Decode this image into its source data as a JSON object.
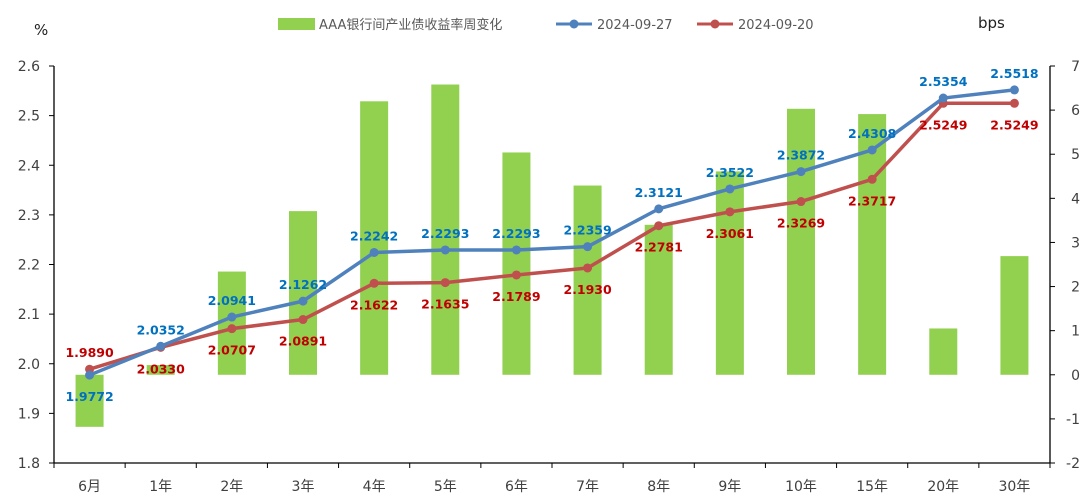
{
  "chart_data": {
    "type": "bar+line",
    "left_axis_unit": "%",
    "right_axis_unit": "bps",
    "left_ylim": [
      1.8,
      2.6
    ],
    "left_ticks": [
      "1.8",
      "1.9",
      "2.0",
      "2.1",
      "2.2",
      "2.3",
      "2.4",
      "2.5",
      "2.6"
    ],
    "right_ylim": [
      -2,
      7
    ],
    "right_ticks": [
      "-2",
      "-1",
      "0",
      "1",
      "2",
      "3",
      "4",
      "5",
      "6",
      "7"
    ],
    "categories": [
      "6月",
      "1年",
      "2年",
      "3年",
      "4年",
      "5年",
      "6年",
      "7年",
      "8年",
      "9年",
      "10年",
      "15年",
      "20年",
      "30年"
    ],
    "legend_position": "top",
    "grid": false,
    "series": [
      {
        "name": "AAA银行间产业债收益率周变化",
        "type": "bar",
        "axis": "right",
        "color": "#92d050",
        "values": [
          -1.18,
          0.22,
          2.34,
          3.71,
          6.2,
          6.58,
          5.04,
          4.29,
          3.4,
          4.61,
          6.03,
          5.91,
          1.05,
          2.69
        ]
      },
      {
        "name": "2024-09-27",
        "type": "line",
        "axis": "left",
        "color": "#4f81bd",
        "label_color": "#0070c0",
        "values": [
          1.9772,
          2.0352,
          2.0941,
          2.1262,
          2.2242,
          2.2293,
          2.2293,
          2.2359,
          2.3121,
          2.3522,
          2.3872,
          2.4308,
          2.5354,
          2.5518
        ],
        "labels": [
          "1.9772",
          "2.0352",
          "2.0941",
          "2.1262",
          "2.2242",
          "2.2293",
          "2.2293",
          "2.2359",
          "2.3121",
          "2.3522",
          "2.3872",
          "2.4308",
          "2.5354",
          "2.5518"
        ]
      },
      {
        "name": "2024-09-20",
        "type": "line",
        "axis": "left",
        "color": "#c0504d",
        "label_color": "#c00000",
        "values": [
          1.989,
          2.033,
          2.0707,
          2.0891,
          2.1622,
          2.1635,
          2.1789,
          2.193,
          2.2781,
          2.3061,
          2.3269,
          2.3717,
          2.5249,
          2.5249
        ],
        "labels": [
          "1.9890",
          "2.0330",
          "2.0707",
          "2.0891",
          "2.1622",
          "2.1635",
          "2.1789",
          "2.1930",
          "2.2781",
          "2.3061",
          "2.3269",
          "2.3717",
          "2.5249",
          "2.5249"
        ]
      }
    ]
  }
}
